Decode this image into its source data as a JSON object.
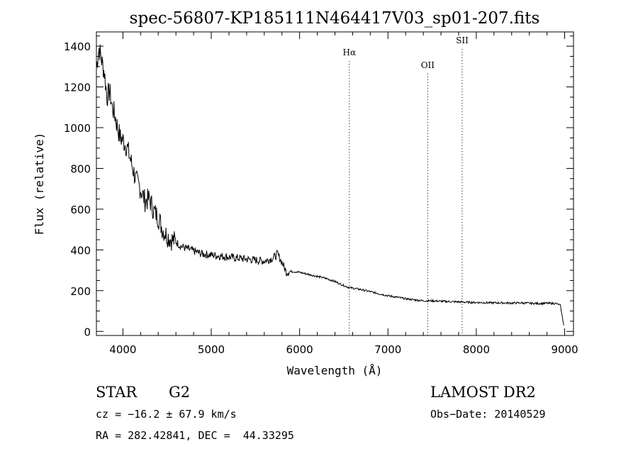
{
  "chart_data": {
    "type": "line",
    "title": "spec-56807-KP185111N464417V03_sp01-207.fits",
    "xlabel": "Wavelength (Å)",
    "ylabel": "Flux (relative)",
    "xlim": [
      3700,
      9100
    ],
    "ylim": [
      -20,
      1470
    ],
    "x_ticks": [
      4000,
      5000,
      6000,
      7000,
      8000,
      9000
    ],
    "y_ticks": [
      0,
      200,
      400,
      600,
      800,
      1000,
      1200,
      1400
    ],
    "grid": false,
    "lines": [
      {
        "label": "Hα",
        "x": 6563
      },
      {
        "label": "OII",
        "x": 7450
      },
      {
        "label": "SII",
        "x": 7840
      }
    ],
    "series": [
      {
        "x": [
          3700,
          3730,
          3760,
          3790,
          3820,
          3850,
          3880,
          3910,
          3940,
          3970,
          4000,
          4050,
          4100,
          4150,
          4200,
          4250,
          4300,
          4350,
          4400,
          4450,
          4500,
          4550,
          4600,
          4650,
          4700,
          4800,
          4900,
          5000,
          5100,
          5200,
          5300,
          5400,
          5500,
          5600,
          5700,
          5750,
          5800,
          5850,
          5900,
          6000,
          6100,
          6200,
          6300,
          6400,
          6500,
          6563,
          6600,
          6700,
          6800,
          6900,
          7000,
          7100,
          7200,
          7300,
          7400,
          7500,
          7600,
          7700,
          7800,
          7900,
          8000,
          8100,
          8200,
          8300,
          8400,
          8500,
          8600,
          8700,
          8800,
          8900,
          8950,
          8990
        ],
        "values": [
          1300,
          1390,
          1330,
          1270,
          1150,
          1180,
          1100,
          1060,
          1000,
          950,
          940,
          900,
          820,
          740,
          700,
          640,
          650,
          590,
          560,
          500,
          470,
          450,
          440,
          420,
          410,
          395,
          380,
          375,
          370,
          365,
          360,
          355,
          350,
          345,
          360,
          380,
          340,
          290,
          295,
          290,
          280,
          270,
          260,
          245,
          225,
          215,
          212,
          205,
          195,
          185,
          175,
          168,
          160,
          155,
          150,
          150,
          148,
          146,
          145,
          143,
          142,
          141,
          140,
          140,
          139,
          140,
          138,
          137,
          138,
          137,
          130,
          30
        ]
      }
    ]
  },
  "info": {
    "object_class": "STAR",
    "subclass": "G2",
    "survey": "LAMOST DR2",
    "cz": "cz = −16.2 ± 67.9 km/s",
    "obs_date": "Obs−Date: 20140529",
    "coords": "RA = 282.42841, DEC =  44.33295"
  }
}
